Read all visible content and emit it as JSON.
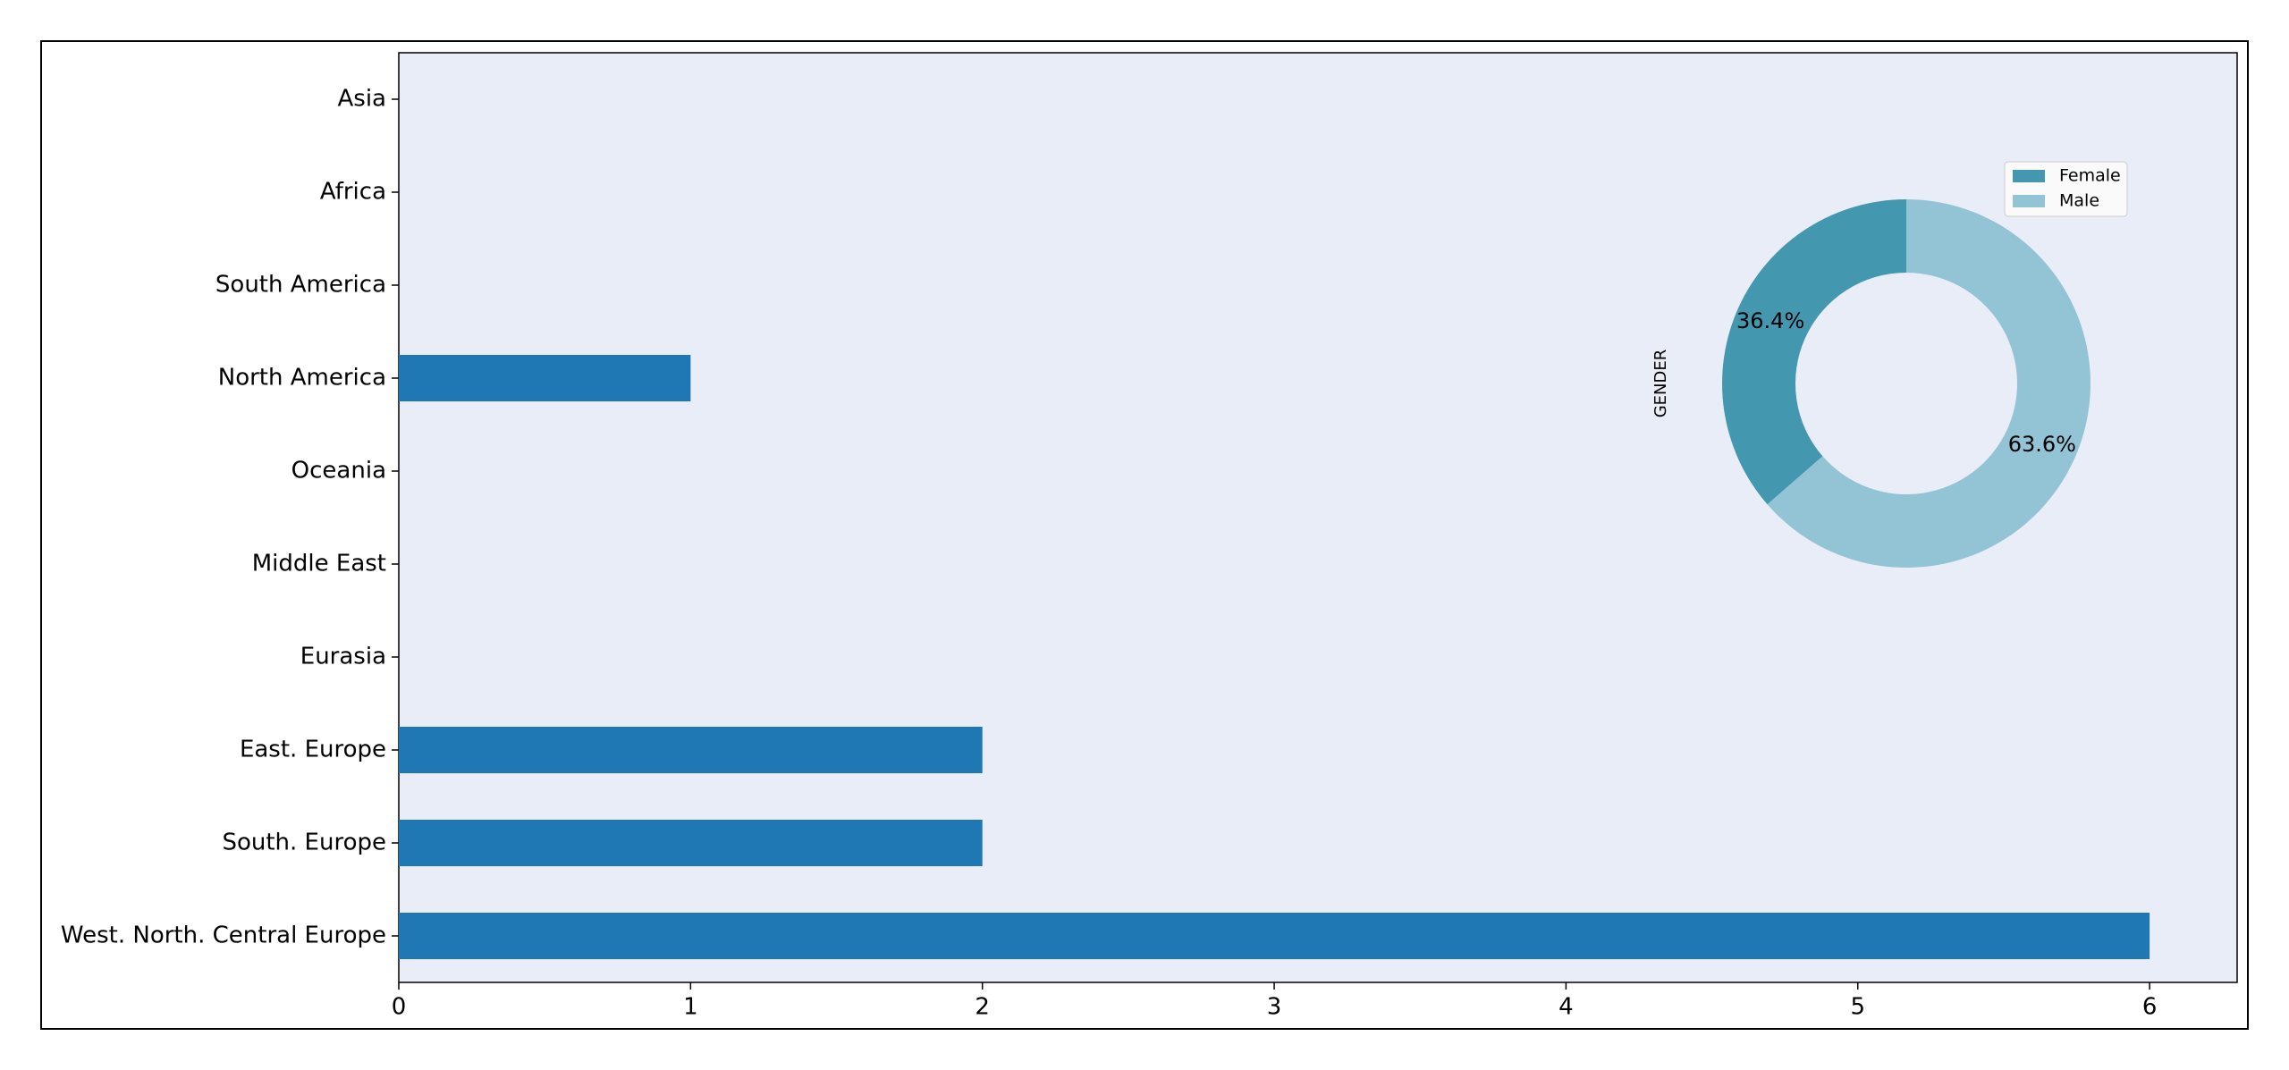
{
  "chart_data": [
    {
      "type": "bar",
      "horizontal": true,
      "categories": [
        "Asia",
        "Africa",
        "South America",
        "North America",
        "Oceania",
        "Middle East",
        "Eurasia",
        "East. Europe",
        "South. Europe",
        "West. North. Central Europe"
      ],
      "values": [
        0,
        0,
        0,
        1,
        0,
        0,
        0,
        2,
        2,
        6
      ],
      "color": "#1f77b4",
      "xlim": [
        0,
        6.3
      ],
      "xticks": [
        0,
        1,
        2,
        3,
        4,
        5,
        6
      ]
    },
    {
      "type": "pie",
      "ylabel": "GENDER",
      "legend": "upper right",
      "categories": [
        "Female",
        "Male"
      ],
      "values": [
        36.4,
        63.6
      ],
      "value_labels": [
        "36.4%",
        "63.6%"
      ],
      "colors": [
        "#4398b0",
        "#93c4d6"
      ]
    }
  ]
}
